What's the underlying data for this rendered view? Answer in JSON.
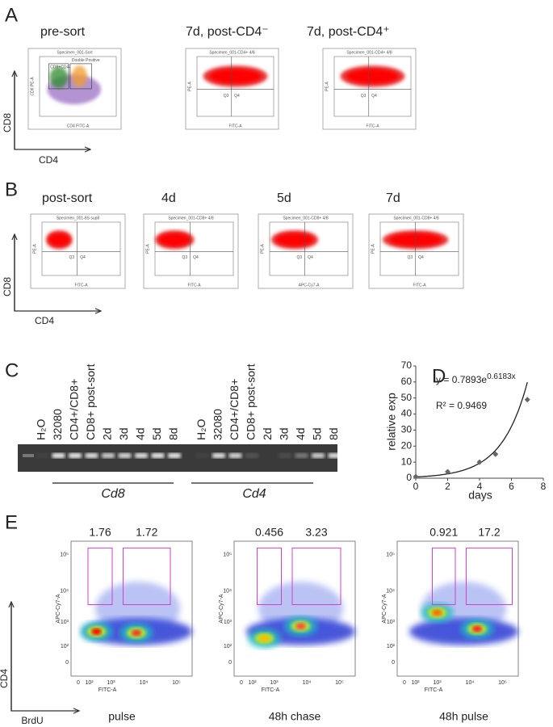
{
  "panel_a": {
    "letter": "A",
    "y_axis": "CD8",
    "x_axis": "CD4",
    "plots": [
      {
        "title": "pre-sort",
        "header": "Specimen_001-Sort",
        "x_label": "CD4 FITC-A",
        "y_label": "CD8 PE-A",
        "gates": [
          "CD8+CD4-",
          "Double Positive"
        ]
      },
      {
        "title": "7d, post-CD4⁻",
        "header": "Specimen_001-CD4+ 4/8",
        "x_label": "FITC-A",
        "y_label": "PE-A",
        "quadrants": [
          "Q3",
          "Q4"
        ]
      },
      {
        "title": "7d, post-CD4⁺",
        "header": "Specimen_001-CD4+ 4/8",
        "x_label": "FITC-A",
        "y_label": "PE-A",
        "quadrants": [
          "Q3",
          "Q4"
        ]
      }
    ]
  },
  "panel_b": {
    "letter": "B",
    "y_axis": "CD8",
    "x_axis": "CD4",
    "plots": [
      {
        "title": "post-sort",
        "header": "Specimen_001-8S sup8",
        "x_label": "FITC-A",
        "y_label": "PE-A",
        "quadrants": [
          "Q3",
          "Q4"
        ]
      },
      {
        "title": "4d",
        "header": "Specimen_001-CD8+ 4/8",
        "x_label": "FITC-A",
        "y_label": "PE-A",
        "quadrants": [
          "Q3",
          "Q4"
        ]
      },
      {
        "title": "5d",
        "header": "Specimen_001-CD8+ 4/8",
        "x_label": "APC-Cy7-A",
        "y_label": "PE-A",
        "quadrants": [
          "Q3",
          "Q4"
        ]
      },
      {
        "title": "7d",
        "header": "Specimen_001-CD8+ 4/8",
        "x_label": "FITC-A",
        "y_label": "PE-A",
        "quadrants": [
          "Q3",
          "Q4"
        ]
      }
    ]
  },
  "panel_c": {
    "letter": "C",
    "lanes": [
      "H₂O",
      "32080",
      "CD4+/CD8+",
      "CD8+ post-sort",
      "2d",
      "3d",
      "4d",
      "5d",
      "8d",
      "H₂O",
      "32080",
      "CD4+/CD8+",
      "CD8+ post-sort",
      "2d",
      "3d",
      "4d",
      "5d",
      "8d"
    ],
    "genes": [
      "Cd8",
      "Cd4"
    ]
  },
  "panel_d": {
    "letter": "D",
    "type": "scatter",
    "x_label": "days",
    "y_label": "relative exp",
    "x": [
      0,
      2,
      4,
      5,
      7
    ],
    "y": [
      1,
      4,
      10,
      15,
      49
    ],
    "xlim": [
      0,
      8
    ],
    "ylim": [
      0,
      70
    ],
    "xticks": [
      0,
      2,
      4,
      6,
      8
    ],
    "yticks": [
      0,
      10,
      20,
      30,
      40,
      50,
      60,
      70
    ],
    "fit": {
      "lhs": "y = ",
      "a": 0.7893,
      "base": "e",
      "b": 0.6183,
      "var": "x"
    },
    "r_squared": "R² = 0.9469"
  },
  "panel_e": {
    "letter": "E",
    "y_axis": "CD4",
    "x_axis": "BrdU",
    "y_tick_labels": [
      "10⁵",
      "10⁴",
      "10³",
      "10²",
      "0"
    ],
    "x_tick_labels": [
      "0",
      "10²",
      "10³",
      "10⁴",
      "10⁵"
    ],
    "plots": [
      {
        "gate_labels": [
          "1.76",
          "1.72"
        ],
        "x_label": "FITC-A",
        "y_label": "APC-Cy7-A",
        "caption": "pulse"
      },
      {
        "gate_labels": [
          "0.456",
          "3.23"
        ],
        "x_label": "FITC-A",
        "y_label": "APC-Cy7-A",
        "caption": "48h chase"
      },
      {
        "gate_labels": [
          "0.921",
          "17.2"
        ],
        "x_label": "FITC-A",
        "y_label": "APC-Cy7-A",
        "caption": "48h pulse"
      }
    ]
  }
}
